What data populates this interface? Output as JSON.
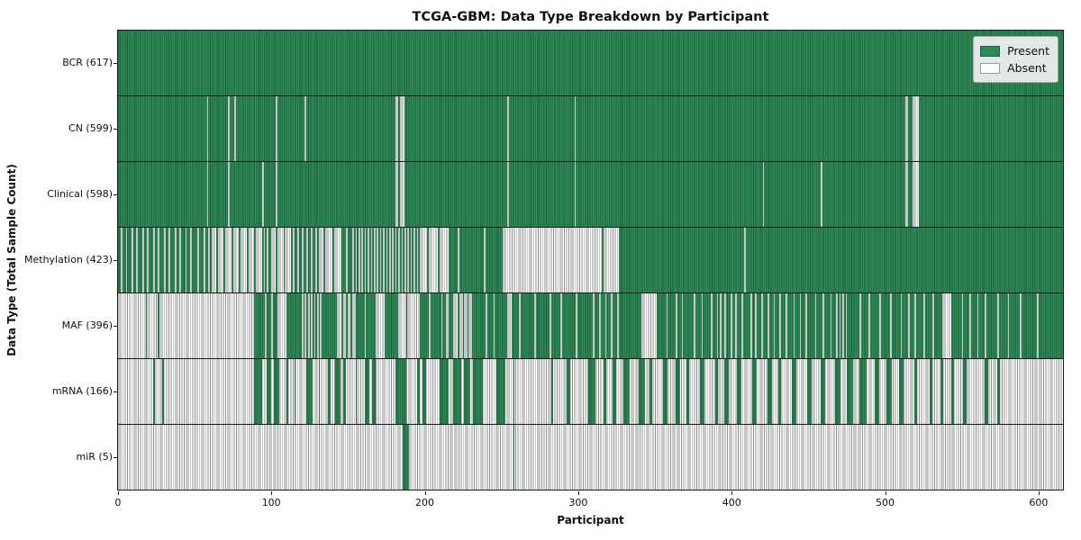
{
  "chart_data": {
    "type": "heatmap",
    "title": "TCGA-GBM: Data Type Breakdown by Participant",
    "xlabel": "Participant",
    "ylabel": "Data Type (Total Sample Count)",
    "n_participants": 617,
    "x_ticks": [
      0,
      100,
      200,
      300,
      400,
      500,
      600
    ],
    "grid": false,
    "legend_position": "upper right",
    "legend": [
      {
        "label": "Present",
        "state": "present"
      },
      {
        "label": "Absent",
        "state": "absent"
      }
    ],
    "colors": {
      "present_fill": "#2e8b57",
      "present_edge": "#1d5e3c",
      "absent_fill": "#ffffff",
      "absent_edge": "#8f8f8f",
      "axis_line": "#1a1a1a"
    },
    "rows": [
      {
        "data_type": "BCR",
        "label": "BCR (617)",
        "present_count": 617,
        "base": "present",
        "flip_ranges": []
      },
      {
        "data_type": "CN",
        "label": "CN (599)",
        "present_count": 599,
        "base": "present",
        "flip_ranges": [
          [
            58,
            58
          ],
          [
            72,
            72
          ],
          [
            76,
            76
          ],
          [
            103,
            103
          ],
          [
            122,
            122
          ],
          [
            181,
            182
          ],
          [
            184,
            186
          ],
          [
            254,
            254
          ],
          [
            298,
            298
          ],
          [
            514,
            515
          ],
          [
            519,
            522
          ]
        ]
      },
      {
        "data_type": "Clinical",
        "label": "Clinical (598)",
        "present_count": 598,
        "base": "present",
        "flip_ranges": [
          [
            58,
            58
          ],
          [
            72,
            72
          ],
          [
            94,
            94
          ],
          [
            103,
            103
          ],
          [
            181,
            182
          ],
          [
            184,
            186
          ],
          [
            254,
            254
          ],
          [
            298,
            298
          ],
          [
            421,
            421
          ],
          [
            459,
            459
          ],
          [
            514,
            515
          ],
          [
            519,
            522
          ]
        ]
      },
      {
        "data_type": "Methylation",
        "label": "Methylation (423)",
        "present_count": 423,
        "base": "present",
        "flip_ranges": [
          [
            2,
            2
          ],
          [
            5,
            5
          ],
          [
            9,
            9
          ],
          [
            12,
            12
          ],
          [
            16,
            16
          ],
          [
            19,
            19
          ],
          [
            23,
            23
          ],
          [
            26,
            26
          ],
          [
            30,
            30
          ],
          [
            33,
            33
          ],
          [
            37,
            37
          ],
          [
            40,
            40
          ],
          [
            44,
            44
          ],
          [
            47,
            47
          ],
          [
            52,
            52
          ],
          [
            56,
            56
          ],
          [
            59,
            59
          ],
          [
            61,
            63
          ],
          [
            65,
            68
          ],
          [
            70,
            73
          ],
          [
            75,
            78
          ],
          [
            80,
            83
          ],
          [
            85,
            88
          ],
          [
            90,
            93
          ],
          [
            95,
            95
          ],
          [
            97,
            97
          ],
          [
            100,
            102
          ],
          [
            104,
            107
          ],
          [
            109,
            112
          ],
          [
            114,
            114
          ],
          [
            117,
            117
          ],
          [
            120,
            120
          ],
          [
            123,
            123
          ],
          [
            126,
            126
          ],
          [
            129,
            129
          ],
          [
            131,
            133
          ],
          [
            135,
            139
          ],
          [
            141,
            145
          ],
          [
            149,
            149
          ],
          [
            153,
            153
          ],
          [
            155,
            155
          ],
          [
            157,
            157
          ],
          [
            159,
            159
          ],
          [
            161,
            161
          ],
          [
            163,
            163
          ],
          [
            165,
            165
          ],
          [
            167,
            167
          ],
          [
            169,
            169
          ],
          [
            171,
            171
          ],
          [
            173,
            173
          ],
          [
            175,
            175
          ],
          [
            177,
            177
          ],
          [
            179,
            179
          ],
          [
            181,
            181
          ],
          [
            183,
            183
          ],
          [
            185,
            185
          ],
          [
            187,
            187
          ],
          [
            189,
            189
          ],
          [
            191,
            191
          ],
          [
            193,
            193
          ],
          [
            195,
            195
          ],
          [
            197,
            201
          ],
          [
            203,
            208
          ],
          [
            210,
            215
          ],
          [
            222,
            222
          ],
          [
            239,
            239
          ],
          [
            251,
            315
          ],
          [
            317,
            326
          ],
          [
            409,
            409
          ]
        ]
      },
      {
        "data_type": "MAF",
        "label": "MAF (396)",
        "present_count": 396,
        "base": "present",
        "flip_ranges": [
          [
            0,
            17
          ],
          [
            19,
            25
          ],
          [
            27,
            88
          ],
          [
            96,
            96
          ],
          [
            100,
            100
          ],
          [
            104,
            109
          ],
          [
            120,
            120
          ],
          [
            122,
            122
          ],
          [
            124,
            124
          ],
          [
            126,
            126
          ],
          [
            128,
            128
          ],
          [
            130,
            130
          ],
          [
            132,
            132
          ],
          [
            143,
            145
          ],
          [
            147,
            148
          ],
          [
            150,
            151
          ],
          [
            153,
            154
          ],
          [
            161,
            161
          ],
          [
            168,
            173
          ],
          [
            183,
            187
          ],
          [
            189,
            196
          ],
          [
            203,
            203
          ],
          [
            211,
            211
          ],
          [
            214,
            215
          ],
          [
            219,
            221
          ],
          [
            223,
            224
          ],
          [
            226,
            227
          ],
          [
            229,
            230
          ],
          [
            240,
            240
          ],
          [
            245,
            245
          ],
          [
            254,
            256
          ],
          [
            262,
            262
          ],
          [
            272,
            272
          ],
          [
            282,
            282
          ],
          [
            289,
            289
          ],
          [
            299,
            299
          ],
          [
            310,
            310
          ],
          [
            314,
            314
          ],
          [
            318,
            318
          ],
          [
            322,
            322
          ],
          [
            326,
            326
          ],
          [
            342,
            351
          ],
          [
            358,
            358
          ],
          [
            364,
            364
          ],
          [
            368,
            368
          ],
          [
            376,
            376
          ],
          [
            381,
            381
          ],
          [
            387,
            387
          ],
          [
            391,
            391
          ],
          [
            393,
            393
          ],
          [
            396,
            396
          ],
          [
            400,
            400
          ],
          [
            403,
            403
          ],
          [
            407,
            407
          ],
          [
            413,
            413
          ],
          [
            416,
            416
          ],
          [
            420,
            420
          ],
          [
            424,
            424
          ],
          [
            428,
            428
          ],
          [
            432,
            432
          ],
          [
            436,
            436
          ],
          [
            441,
            441
          ],
          [
            445,
            445
          ],
          [
            449,
            449
          ],
          [
            455,
            455
          ],
          [
            460,
            460
          ],
          [
            465,
            465
          ],
          [
            469,
            469
          ],
          [
            471,
            471
          ],
          [
            473,
            473
          ],
          [
            475,
            475
          ],
          [
            484,
            484
          ],
          [
            490,
            490
          ],
          [
            497,
            497
          ],
          [
            504,
            504
          ],
          [
            511,
            511
          ],
          [
            516,
            516
          ],
          [
            520,
            520
          ],
          [
            526,
            526
          ],
          [
            532,
            532
          ],
          [
            538,
            543
          ],
          [
            551,
            551
          ],
          [
            556,
            556
          ],
          [
            561,
            561
          ],
          [
            566,
            566
          ],
          [
            574,
            574
          ],
          [
            581,
            581
          ],
          [
            589,
            589
          ],
          [
            600,
            600
          ]
        ]
      },
      {
        "data_type": "mRNA",
        "label": "mRNA (166)",
        "present_count": 166,
        "base": "absent",
        "flip_ranges": [
          [
            23,
            23
          ],
          [
            29,
            29
          ],
          [
            89,
            93
          ],
          [
            97,
            99
          ],
          [
            102,
            104
          ],
          [
            110,
            110
          ],
          [
            115,
            115
          ],
          [
            123,
            126
          ],
          [
            131,
            131
          ],
          [
            137,
            138
          ],
          [
            142,
            144
          ],
          [
            147,
            148
          ],
          [
            155,
            155
          ],
          [
            161,
            163
          ],
          [
            166,
            167
          ],
          [
            181,
            187
          ],
          [
            195,
            196
          ],
          [
            199,
            200
          ],
          [
            210,
            215
          ],
          [
            219,
            223
          ],
          [
            226,
            229
          ],
          [
            232,
            237
          ],
          [
            247,
            252
          ],
          [
            258,
            258
          ],
          [
            283,
            283
          ],
          [
            293,
            294
          ],
          [
            307,
            311
          ],
          [
            317,
            318
          ],
          [
            323,
            324
          ],
          [
            330,
            333
          ],
          [
            340,
            343
          ],
          [
            347,
            348
          ],
          [
            356,
            358
          ],
          [
            364,
            366
          ],
          [
            371,
            372
          ],
          [
            380,
            382
          ],
          [
            390,
            391
          ],
          [
            396,
            398
          ],
          [
            404,
            406
          ],
          [
            414,
            416
          ],
          [
            424,
            426
          ],
          [
            431,
            432
          ],
          [
            440,
            442
          ],
          [
            450,
            452
          ],
          [
            459,
            461
          ],
          [
            468,
            471
          ],
          [
            476,
            479
          ],
          [
            484,
            488
          ],
          [
            494,
            496
          ],
          [
            502,
            504
          ],
          [
            510,
            512
          ],
          [
            520,
            521
          ],
          [
            530,
            531
          ],
          [
            537,
            538
          ],
          [
            544,
            545
          ],
          [
            552,
            553
          ],
          [
            566,
            567
          ],
          [
            574,
            575
          ]
        ]
      },
      {
        "data_type": "miR",
        "label": "miR (5)",
        "present_count": 5,
        "base": "absent",
        "flip_ranges": [
          [
            186,
            189
          ],
          [
            258,
            258
          ]
        ]
      }
    ]
  }
}
